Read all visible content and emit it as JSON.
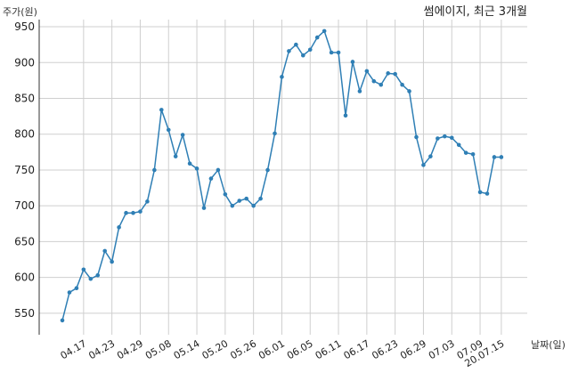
{
  "chart_data": {
    "type": "line",
    "title": "썸에이지, 최근 3개월",
    "ylabel": "주가(원)",
    "xlabel": "날짜(일)",
    "ylim": [
      520,
      960
    ],
    "y_ticks": [
      550,
      600,
      650,
      700,
      750,
      800,
      850,
      900,
      950
    ],
    "x_tick_labels": [
      {
        "index": 3,
        "label": "04.17"
      },
      {
        "index": 7,
        "label": "04.23"
      },
      {
        "index": 11,
        "label": "04.29"
      },
      {
        "index": 15,
        "label": "05.08"
      },
      {
        "index": 19,
        "label": "05.14"
      },
      {
        "index": 23,
        "label": "05.20"
      },
      {
        "index": 27,
        "label": "05.26"
      },
      {
        "index": 31,
        "label": "06.01"
      },
      {
        "index": 35,
        "label": "06.05"
      },
      {
        "index": 39,
        "label": "06.11"
      },
      {
        "index": 43,
        "label": "06.17"
      },
      {
        "index": 47,
        "label": "06.23"
      },
      {
        "index": 51,
        "label": "06.29"
      },
      {
        "index": 55,
        "label": "07.03"
      },
      {
        "index": 59,
        "label": "07.09"
      },
      {
        "index": 62,
        "label": "20.07.15"
      }
    ],
    "grid": true,
    "color": "#2f7fb5",
    "series": [
      {
        "values": [
          540,
          579,
          585,
          611,
          598,
          603,
          637,
          622,
          670,
          690,
          690,
          692,
          706,
          750,
          834,
          806,
          769,
          799,
          759,
          752,
          697,
          738,
          750,
          716,
          700,
          707,
          710,
          700,
          710,
          750,
          801,
          880,
          916,
          925,
          910,
          918,
          935,
          944,
          914,
          914,
          826,
          901,
          860,
          888,
          874,
          869,
          885,
          884,
          869,
          860,
          796,
          757,
          769,
          794,
          797,
          795,
          785,
          774,
          772,
          719,
          717,
          768,
          768
        ]
      }
    ]
  }
}
